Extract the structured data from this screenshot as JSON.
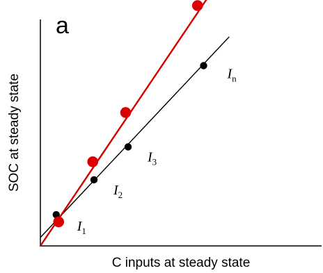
{
  "panel_label": "a",
  "chart_data": {
    "type": "line",
    "title": "",
    "xlabel": "C inputs at steady state",
    "ylabel": "SOC at steady state",
    "xlim": [
      0,
      10
    ],
    "ylim": [
      0,
      10
    ],
    "axis_ticks": "none",
    "grid": false,
    "legend": "none",
    "series": [
      {
        "color": "#000000",
        "marker_color": "#000000",
        "line_x": [
          0,
          7.75
        ],
        "line_y": [
          0.35,
          8.7
        ],
        "points": [
          {
            "x": 0.65,
            "y": 1.3,
            "label": "I",
            "sub": "1"
          },
          {
            "x": 2.2,
            "y": 2.75,
            "label": "I",
            "sub": "2"
          },
          {
            "x": 3.6,
            "y": 4.12,
            "label": "I",
            "sub": "3"
          },
          {
            "x": 6.7,
            "y": 7.5,
            "label": "I",
            "sub": "n"
          }
        ]
      },
      {
        "color": "#d40000",
        "marker_color": "#dd0000",
        "line_x": [
          0,
          7.05
        ],
        "line_y": [
          0,
          10.6
        ],
        "points": [
          {
            "x": 0.75,
            "y": 1.0
          },
          {
            "x": 2.15,
            "y": 3.5
          },
          {
            "x": 3.5,
            "y": 5.55
          },
          {
            "x": 6.45,
            "y": 10.0
          }
        ]
      }
    ]
  }
}
